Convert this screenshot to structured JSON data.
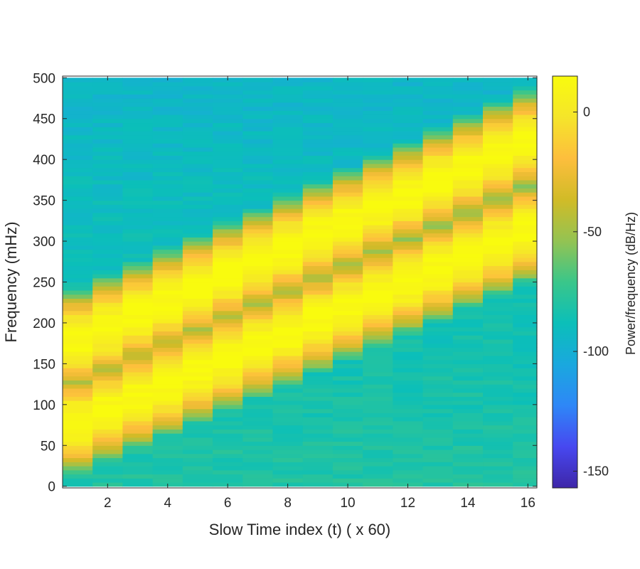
{
  "chart_data": {
    "type": "heatmap",
    "title": "",
    "xlabel": "Slow Time index (t) ( x 60)",
    "ylabel": "Frequency (mHz)",
    "xlim": [
      0.5,
      16.3
    ],
    "ylim": [
      -2,
      502
    ],
    "x_ticks": [
      2,
      4,
      6,
      8,
      10,
      12,
      14,
      16
    ],
    "y_ticks": [
      0,
      50,
      100,
      150,
      200,
      250,
      300,
      350,
      400,
      450,
      500
    ],
    "time_bins": [
      1,
      2,
      3,
      4,
      5,
      6,
      7,
      8,
      9,
      10,
      11,
      12,
      13,
      14,
      15,
      16
    ],
    "freq_range": [
      0,
      500
    ],
    "ridges": [
      {
        "center_start": 70,
        "center_end": 320,
        "peak_db": 15
      },
      {
        "center_start": 170,
        "center_end": 430,
        "peak_db": 15
      }
    ],
    "background_db_low_freq": -80,
    "background_db_high_freq": -95,
    "colorbar": {
      "label": "Power/frequency (dB/Hz)",
      "range": [
        -157,
        15
      ],
      "ticks": [
        0,
        -50,
        -100,
        -150
      ],
      "colormap": "parula"
    },
    "grid": false,
    "colormap_stops": [
      "#3e26a8",
      "#4748f0",
      "#2e87f7",
      "#1aa8de",
      "#0bbfb9",
      "#3ac68a",
      "#94c352",
      "#d1bb27",
      "#fdbe3d",
      "#f5e52a",
      "#f9fb0e"
    ]
  }
}
